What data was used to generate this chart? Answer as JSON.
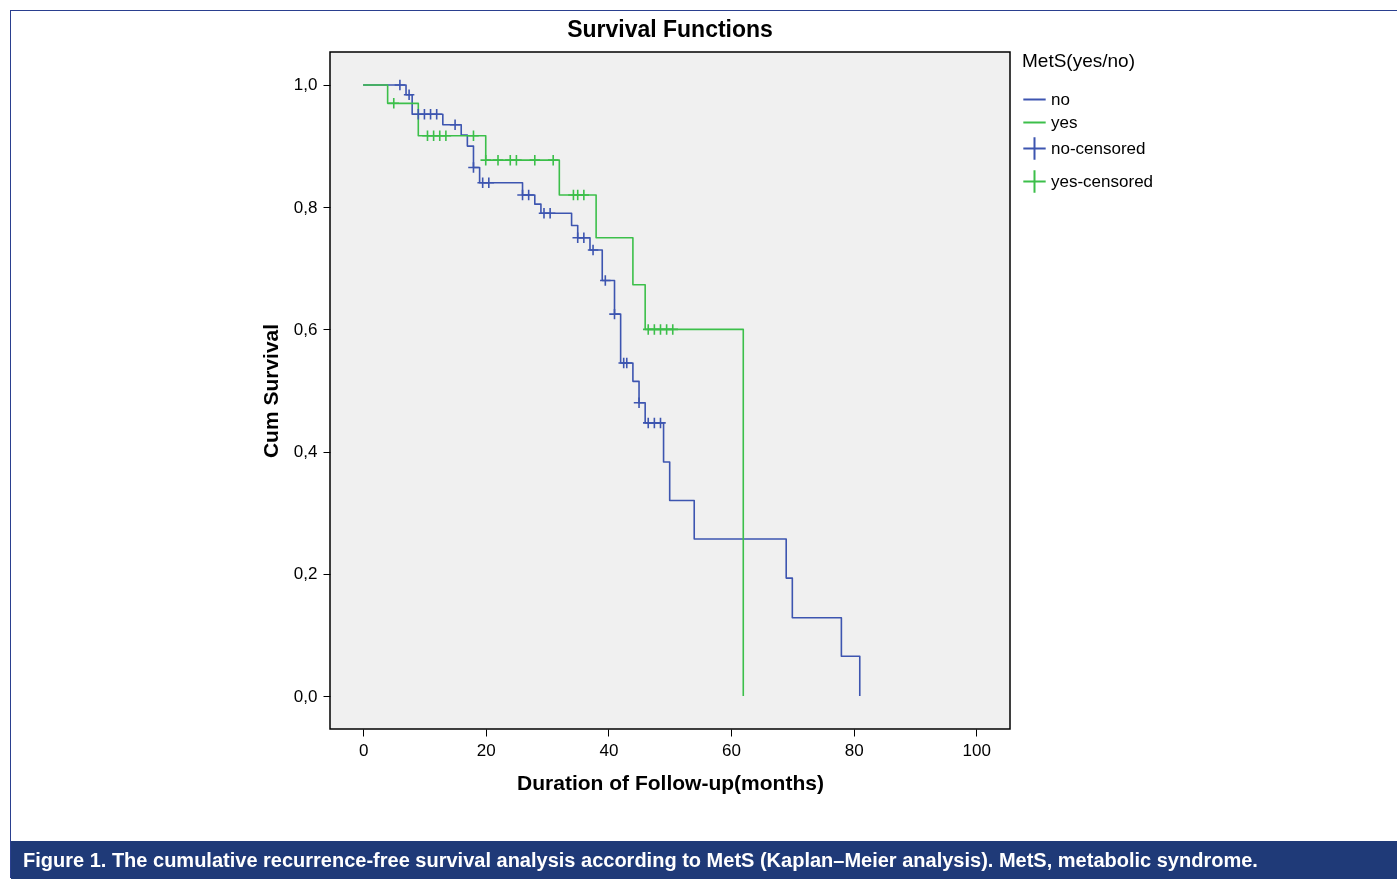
{
  "chart_data": {
    "type": "step",
    "title": "Survival Functions",
    "xlabel": "Duration of Follow-up(months)",
    "ylabel": "Cum Survival",
    "legend_title": "MetS(yes/no)",
    "xlim": [
      -5.4,
      105.5
    ],
    "ylim": [
      -0.054,
      1.054
    ],
    "xticks": [
      0,
      20,
      40,
      60,
      80,
      100
    ],
    "yticks": [
      {
        "value": 0,
        "label": "0,0"
      },
      {
        "value": 0.2,
        "label": "0,2"
      },
      {
        "value": 0.4,
        "label": "0,4"
      },
      {
        "value": 0.6,
        "label": "0,6"
      },
      {
        "value": 0.8,
        "label": "0,8"
      },
      {
        "value": 1,
        "label": "1,0"
      }
    ],
    "grid": false,
    "legend": "top right",
    "series": [
      {
        "name": "no",
        "color": "#3d55b0",
        "x": [
          0,
          7,
          8,
          13,
          16,
          17,
          18,
          19,
          26,
          28,
          29,
          34,
          35,
          37,
          39,
          41,
          42,
          44,
          45,
          46,
          49,
          50,
          54,
          69,
          70,
          78,
          81
        ],
        "values": [
          1.0,
          0.984,
          0.952,
          0.935,
          0.918,
          0.9,
          0.865,
          0.84,
          0.82,
          0.805,
          0.79,
          0.77,
          0.75,
          0.73,
          0.68,
          0.625,
          0.545,
          0.515,
          0.48,
          0.447,
          0.383,
          0.32,
          0.257,
          0.193,
          0.128,
          0.065,
          0.0
        ]
      },
      {
        "name": "yes",
        "color": "#3cbf4a",
        "x": [
          0,
          4,
          9,
          20,
          32,
          38,
          44,
          46,
          62
        ],
        "values": [
          1.0,
          0.97,
          0.917,
          0.877,
          0.82,
          0.75,
          0.673,
          0.6,
          0.0
        ]
      },
      {
        "name": "no-censored",
        "type": "scatter",
        "marker": "cross",
        "color": "#3d55b0",
        "x": [
          6,
          7.5,
          9,
          10,
          11,
          12,
          15,
          18,
          19.5,
          20.5,
          26,
          27,
          29.5,
          30.5,
          35,
          36,
          37.5,
          39.5,
          41,
          42.5,
          43,
          45,
          46.5,
          47.5,
          48.5
        ],
        "values": [
          1.0,
          0.984,
          0.952,
          0.952,
          0.952,
          0.952,
          0.935,
          0.865,
          0.84,
          0.84,
          0.82,
          0.82,
          0.79,
          0.79,
          0.75,
          0.75,
          0.73,
          0.68,
          0.625,
          0.545,
          0.545,
          0.48,
          0.447,
          0.447,
          0.447
        ]
      },
      {
        "name": "yes-censored",
        "type": "scatter",
        "marker": "cross",
        "color": "#3cbf4a",
        "x": [
          5,
          10.5,
          11.5,
          12.5,
          13.5,
          18,
          20,
          22,
          24,
          25,
          28,
          31,
          34.3,
          35,
          36,
          46.5,
          47.5,
          48.5,
          49.5,
          50.5
        ],
        "values": [
          0.97,
          0.917,
          0.917,
          0.917,
          0.917,
          0.917,
          0.877,
          0.877,
          0.877,
          0.877,
          0.877,
          0.877,
          0.82,
          0.82,
          0.82,
          0.6,
          0.6,
          0.6,
          0.6,
          0.6
        ]
      }
    ],
    "annotations": [
      "Figure 1.  The cumulative recurrence-free survival analysis according to MetS (Kaplan–Meier analysis). MetS, metabolic syndrome."
    ]
  }
}
